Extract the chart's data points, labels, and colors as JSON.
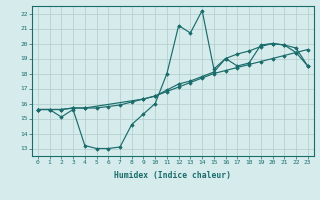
{
  "xlabel": "Humidex (Indice chaleur)",
  "bg_color": "#d6ecec",
  "line_color": "#1a6b6b",
  "grid_color": "#b0cccc",
  "xlim": [
    -0.5,
    23.5
  ],
  "ylim": [
    12.5,
    22.5
  ],
  "xticks": [
    0,
    1,
    2,
    3,
    4,
    5,
    6,
    7,
    8,
    9,
    10,
    11,
    12,
    13,
    14,
    15,
    16,
    17,
    18,
    19,
    20,
    21,
    22,
    23
  ],
  "yticks": [
    13,
    14,
    15,
    16,
    17,
    18,
    19,
    20,
    21,
    22
  ],
  "line1_x": [
    0,
    1,
    2,
    3,
    4,
    5,
    6,
    7,
    8,
    9,
    10,
    11,
    12,
    13,
    14,
    15,
    16,
    17,
    18,
    19,
    20,
    21,
    22,
    23
  ],
  "line1_y": [
    15.6,
    15.6,
    15.1,
    15.6,
    13.2,
    13.0,
    13.0,
    13.1,
    14.6,
    15.3,
    16.0,
    18.0,
    21.2,
    20.7,
    22.2,
    18.3,
    19.0,
    18.5,
    18.7,
    19.9,
    20.0,
    19.9,
    19.4,
    18.5
  ],
  "line2_x": [
    0,
    1,
    2,
    3,
    4,
    5,
    6,
    7,
    8,
    9,
    10,
    11,
    12,
    13,
    14,
    15,
    16,
    17,
    18,
    19,
    20,
    21,
    22,
    23
  ],
  "line2_y": [
    15.6,
    15.6,
    15.6,
    15.7,
    15.7,
    15.7,
    15.8,
    15.9,
    16.1,
    16.3,
    16.5,
    16.8,
    17.1,
    17.4,
    17.7,
    18.0,
    18.2,
    18.4,
    18.6,
    18.8,
    19.0,
    19.2,
    19.4,
    19.6
  ],
  "line3_x": [
    0,
    2,
    3,
    4,
    9,
    10,
    11,
    12,
    13,
    14,
    15,
    16,
    17,
    18,
    19,
    20,
    21,
    22,
    23
  ],
  "line3_y": [
    15.6,
    15.6,
    15.7,
    15.7,
    16.3,
    16.5,
    16.9,
    17.3,
    17.5,
    17.8,
    18.1,
    19.0,
    19.3,
    19.5,
    19.8,
    20.0,
    19.9,
    19.7,
    18.5
  ]
}
